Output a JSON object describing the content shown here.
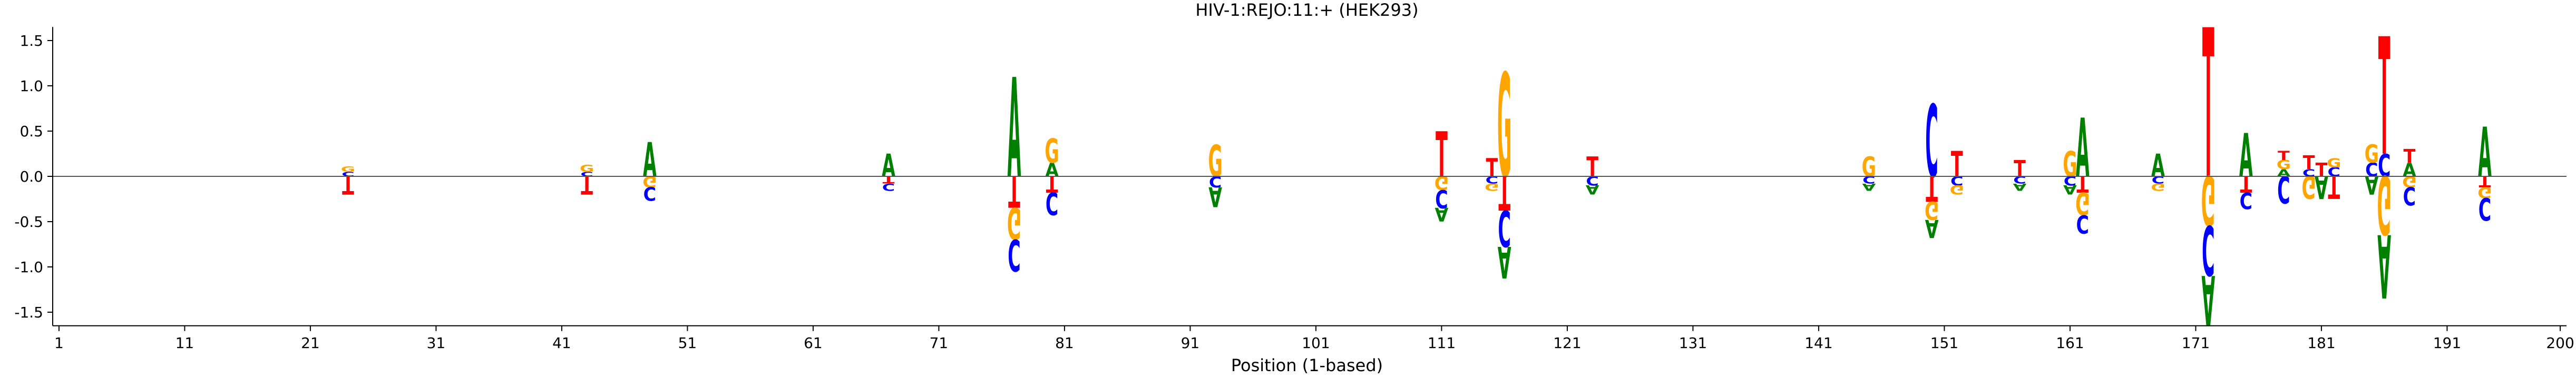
{
  "chart_data": {
    "type": "sequence-logo",
    "title": "HIV-1:REJO:11:+  (HEK293)",
    "xlabel": "Position (1-based)",
    "ylabel": "",
    "xlim": [
      0.5,
      200.5
    ],
    "ylim": [
      -1.65,
      1.65
    ],
    "xticks": [
      1,
      11,
      21,
      31,
      41,
      51,
      61,
      71,
      81,
      91,
      101,
      111,
      121,
      131,
      141,
      151,
      161,
      171,
      181,
      191,
      200
    ],
    "yticks": [
      -1.5,
      -1.0,
      -0.5,
      0.0,
      0.5,
      1.0,
      1.5
    ],
    "grid": false,
    "letter_colors": {
      "A": "#008000",
      "C": "#0000ff",
      "G": "#ffa500",
      "T": "#ff0000"
    },
    "positions": [
      {
        "x": 24,
        "pos": [
          [
            "C",
            0.05
          ],
          [
            "G",
            0.06
          ]
        ],
        "neg": [
          [
            "T",
            0.2
          ]
        ]
      },
      {
        "x": 43,
        "pos": [
          [
            "C",
            0.05
          ],
          [
            "G",
            0.08
          ]
        ],
        "neg": [
          [
            "T",
            0.2
          ]
        ]
      },
      {
        "x": 48,
        "pos": [
          [
            "A",
            0.38
          ]
        ],
        "neg": [
          [
            "G",
            0.12
          ],
          [
            "C",
            0.15
          ]
        ]
      },
      {
        "x": 67,
        "pos": [
          [
            "A",
            0.25
          ]
        ],
        "neg": [
          [
            "T",
            0.08
          ],
          [
            "C",
            0.08
          ]
        ]
      },
      {
        "x": 77,
        "pos": [
          [
            "A",
            1.1
          ]
        ],
        "neg": [
          [
            "T",
            0.35
          ],
          [
            "G",
            0.35
          ],
          [
            "C",
            0.35
          ]
        ]
      },
      {
        "x": 80,
        "pos": [
          [
            "A",
            0.15
          ],
          [
            "G",
            0.27
          ]
        ],
        "neg": [
          [
            "T",
            0.18
          ],
          [
            "C",
            0.25
          ]
        ]
      },
      {
        "x": 93,
        "pos": [
          [
            "G",
            0.35
          ]
        ],
        "neg": [
          [
            "C",
            0.12
          ],
          [
            "A",
            0.22
          ]
        ]
      },
      {
        "x": 111,
        "pos": [
          [
            "T",
            0.5
          ]
        ],
        "neg": [
          [
            "G",
            0.15
          ],
          [
            "C",
            0.2
          ],
          [
            "A",
            0.15
          ]
        ]
      },
      {
        "x": 115,
        "pos": [
          [
            "T",
            0.2
          ]
        ],
        "neg": [
          [
            "C",
            0.08
          ],
          [
            "G",
            0.08
          ]
        ]
      },
      {
        "x": 116,
        "pos": [
          [
            "G",
            1.15
          ]
        ],
        "neg": [
          [
            "T",
            0.38
          ],
          [
            "C",
            0.4
          ],
          [
            "A",
            0.35
          ]
        ]
      },
      {
        "x": 123,
        "pos": [
          [
            "T",
            0.22
          ]
        ],
        "neg": [
          [
            "C",
            0.1
          ],
          [
            "A",
            0.1
          ]
        ]
      },
      {
        "x": 145,
        "pos": [
          [
            "G",
            0.22
          ]
        ],
        "neg": [
          [
            "C",
            0.08
          ],
          [
            "A",
            0.08
          ]
        ]
      },
      {
        "x": 150,
        "pos": [
          [
            "C",
            0.8
          ]
        ],
        "neg": [
          [
            "T",
            0.28
          ],
          [
            "G",
            0.2
          ],
          [
            "A",
            0.2
          ]
        ]
      },
      {
        "x": 152,
        "pos": [
          [
            "T",
            0.28
          ]
        ],
        "neg": [
          [
            "C",
            0.1
          ],
          [
            "G",
            0.1
          ]
        ]
      },
      {
        "x": 157,
        "pos": [
          [
            "T",
            0.18
          ]
        ],
        "neg": [
          [
            "C",
            0.08
          ],
          [
            "A",
            0.08
          ]
        ]
      },
      {
        "x": 161,
        "pos": [
          [
            "G",
            0.28
          ]
        ],
        "neg": [
          [
            "C",
            0.1
          ],
          [
            "A",
            0.1
          ]
        ]
      },
      {
        "x": 162,
        "pos": [
          [
            "A",
            0.65
          ]
        ],
        "neg": [
          [
            "T",
            0.18
          ],
          [
            "G",
            0.25
          ],
          [
            "C",
            0.2
          ]
        ]
      },
      {
        "x": 168,
        "pos": [
          [
            "A",
            0.25
          ]
        ],
        "neg": [
          [
            "C",
            0.08
          ],
          [
            "G",
            0.08
          ]
        ]
      },
      {
        "x": 172,
        "pos": [
          [
            "T",
            1.65
          ]
        ],
        "neg": [
          [
            "G",
            0.55
          ],
          [
            "C",
            0.55
          ],
          [
            "A",
            0.55
          ]
        ]
      },
      {
        "x": 175,
        "pos": [
          [
            "A",
            0.48
          ]
        ],
        "neg": [
          [
            "T",
            0.18
          ],
          [
            "C",
            0.18
          ]
        ]
      },
      {
        "x": 178,
        "pos": [
          [
            "A",
            0.08
          ],
          [
            "G",
            0.1
          ],
          [
            "T",
            0.1
          ]
        ],
        "neg": [
          [
            "C",
            0.3
          ]
        ]
      },
      {
        "x": 180,
        "pos": [
          [
            "C",
            0.08
          ],
          [
            "T",
            0.15
          ]
        ],
        "neg": [
          [
            "G",
            0.25
          ]
        ]
      },
      {
        "x": 181,
        "pos": [
          [
            "T",
            0.15
          ]
        ],
        "neg": [
          [
            "A",
            0.25
          ]
        ]
      },
      {
        "x": 182,
        "pos": [
          [
            "C",
            0.1
          ],
          [
            "G",
            0.1
          ]
        ],
        "neg": [
          [
            "T",
            0.25
          ]
        ]
      },
      {
        "x": 185,
        "pos": [
          [
            "C",
            0.15
          ],
          [
            "G",
            0.2
          ]
        ],
        "neg": [
          [
            "A",
            0.2
          ]
        ]
      },
      {
        "x": 186,
        "pos": [
          [
            "C",
            0.25
          ],
          [
            "T",
            1.3
          ]
        ],
        "neg": [
          [
            "G",
            0.65
          ],
          [
            "A",
            0.7
          ]
        ]
      },
      {
        "x": 188,
        "pos": [
          [
            "A",
            0.15
          ],
          [
            "T",
            0.15
          ]
        ],
        "neg": [
          [
            "G",
            0.12
          ],
          [
            "C",
            0.2
          ]
        ]
      },
      {
        "x": 194,
        "pos": [
          [
            "A",
            0.55
          ]
        ],
        "neg": [
          [
            "T",
            0.12
          ],
          [
            "G",
            0.12
          ],
          [
            "C",
            0.25
          ]
        ]
      }
    ]
  }
}
